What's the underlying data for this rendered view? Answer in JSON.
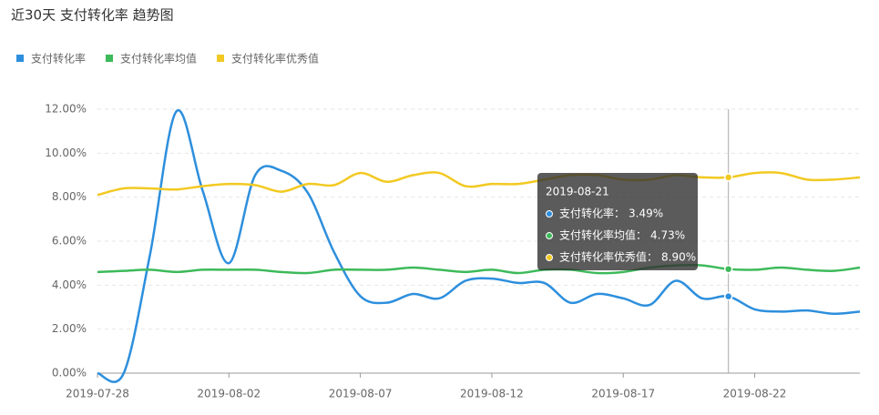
{
  "chart_data": {
    "type": "line",
    "title": "近30天 支付转化率 趋势图",
    "categories": [
      "2019-07-28",
      null,
      null,
      null,
      null,
      "2019-08-02",
      null,
      null,
      null,
      null,
      "2019-08-07",
      null,
      null,
      null,
      null,
      "2019-08-12",
      null,
      null,
      null,
      null,
      "2019-08-17",
      null,
      null,
      null,
      "2019-08-21",
      "2019-08-22",
      null,
      null,
      null,
      null
    ],
    "series": [
      {
        "name": "支付转化率",
        "color": "#2d8fdd",
        "values": [
          0,
          0,
          5.4,
          11.9,
          8.3,
          5.0,
          9.0,
          9.2,
          8.2,
          5.5,
          3.5,
          3.2,
          3.6,
          3.4,
          4.2,
          4.3,
          4.1,
          4.1,
          3.2,
          3.6,
          3.4,
          3.1,
          4.2,
          3.4,
          3.49,
          2.9,
          2.8,
          2.85,
          2.7,
          2.8
        ]
      },
      {
        "name": "支付转化率均值",
        "color": "#3dba5a",
        "values": [
          4.6,
          4.65,
          4.7,
          4.6,
          4.7,
          4.7,
          4.7,
          4.6,
          4.55,
          4.7,
          4.7,
          4.7,
          4.8,
          4.7,
          4.6,
          4.7,
          4.55,
          4.7,
          4.7,
          4.55,
          4.6,
          4.8,
          4.9,
          4.9,
          4.73,
          4.7,
          4.8,
          4.7,
          4.65,
          4.8
        ]
      },
      {
        "name": "支付转化率优秀值",
        "color": "#f2c922",
        "values": [
          8.1,
          8.4,
          8.4,
          8.35,
          8.5,
          8.6,
          8.55,
          8.25,
          8.6,
          8.55,
          9.1,
          8.7,
          9.0,
          9.1,
          8.5,
          8.6,
          8.6,
          8.8,
          9.0,
          9.0,
          8.8,
          8.8,
          9.0,
          8.9,
          8.9,
          9.1,
          9.1,
          8.8,
          8.8,
          8.9
        ]
      }
    ],
    "ylim": [
      0,
      12
    ],
    "yticks": [
      {
        "value": 0,
        "label": "0.00%"
      },
      {
        "value": 2,
        "label": "2.00%"
      },
      {
        "value": 4,
        "label": "4.00%"
      },
      {
        "value": 6,
        "label": "6.00%"
      },
      {
        "value": 8,
        "label": "8.00%"
      },
      {
        "value": 10,
        "label": "10.00%"
      },
      {
        "value": 12,
        "label": "12.00%"
      }
    ],
    "grid": true,
    "tooltip": {
      "date": "2019-08-21",
      "items": [
        {
          "name": "支付转化率：",
          "value": 3.49,
          "value_label": "3.49%"
        },
        {
          "name": "支付转化率均值：",
          "value": 4.73,
          "value_label": "4.73%"
        },
        {
          "name": "支付转化率优秀值：",
          "value": 8.9,
          "value_label": "8.90%"
        }
      ]
    }
  }
}
